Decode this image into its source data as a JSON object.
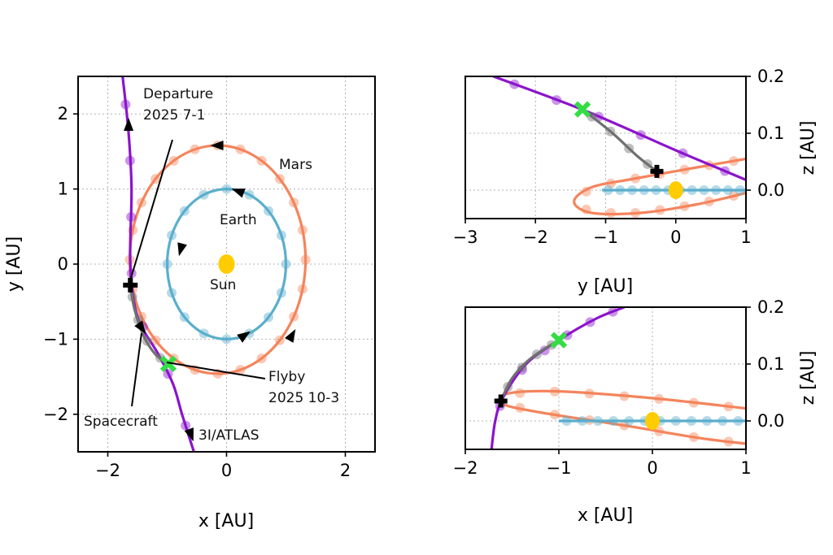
{
  "colors": {
    "earth": "#5aaecb",
    "mars": "#f4845c",
    "atlas": "#8b14cc",
    "spacecraft": "#707070",
    "sun": "#ffcc00",
    "flyby_marker": "#33dd44",
    "departure_marker": "#000000",
    "arrow_icon": "arrow-head-icon"
  },
  "chart_data": [
    {
      "type": "line",
      "panel": "xy",
      "xlabel": "x [AU]",
      "ylabel": "y [AU]",
      "xlim": [
        -2.5,
        2.5
      ],
      "ylim": [
        -2.5,
        2.5
      ],
      "xticks": [
        -2,
        0,
        2
      ],
      "xtick_labels": [
        "−2",
        "0",
        "2"
      ],
      "yticks": [
        -2,
        -1,
        0,
        1,
        2
      ],
      "ytick_labels": [
        "−2",
        "−1",
        "0",
        "1",
        "2"
      ],
      "grid": true,
      "series": [
        {
          "name": "Earth",
          "kind": "ellipse",
          "center": [
            0,
            0
          ],
          "radii": [
            1.0,
            1.0
          ]
        },
        {
          "name": "Mars",
          "kind": "ellipse",
          "center": [
            -0.15,
            0.06
          ],
          "radii": [
            1.48,
            1.52
          ]
        },
        {
          "name": "Sun",
          "kind": "point",
          "x": 0,
          "y": 0
        },
        {
          "name": "3I/ATLAS",
          "kind": "line",
          "points": [
            [
              -1.75,
              2.5
            ],
            [
              -1.65,
              1.75
            ],
            [
              -1.6,
              1.0
            ],
            [
              -1.62,
              0.0
            ],
            [
              -1.5,
              -0.7
            ],
            [
              -1.15,
              -1.2
            ],
            [
              -0.9,
              -1.6
            ],
            [
              -0.75,
              -2.0
            ],
            [
              -0.55,
              -2.5
            ]
          ]
        },
        {
          "name": "Spacecraft",
          "kind": "line",
          "points": [
            [
              -1.62,
              -0.28
            ],
            [
              -1.55,
              -0.6
            ],
            [
              -1.4,
              -0.95
            ],
            [
              -1.2,
              -1.2
            ],
            [
              -0.98,
              -1.33
            ]
          ]
        }
      ],
      "markers": {
        "departure": {
          "x": -1.62,
          "y": -0.28
        },
        "flyby": {
          "x": -0.98,
          "y": -1.33
        }
      },
      "annotations": [
        {
          "text": [
            "Departure",
            "2025 7-1"
          ]
        },
        {
          "text": [
            "Mars"
          ]
        },
        {
          "text": [
            "Earth"
          ]
        },
        {
          "text": [
            "Sun"
          ]
        },
        {
          "text": [
            "Flyby",
            "2025 10-3"
          ]
        },
        {
          "text": [
            "Spacecraft"
          ]
        },
        {
          "text": [
            "3I/ATLAS"
          ]
        }
      ]
    },
    {
      "type": "line",
      "panel": "yz",
      "xlabel": "y [AU]",
      "ylabel": "z [AU]",
      "xlim": [
        -3,
        1
      ],
      "ylim": [
        -0.05,
        0.2
      ],
      "xticks": [
        -3,
        -2,
        -1,
        0,
        1
      ],
      "xtick_labels": [
        "−3",
        "−2",
        "−1",
        "0",
        "1"
      ],
      "yticks": [
        0.0,
        0.1,
        0.2
      ],
      "ytick_labels": [
        "0.0",
        "0.1",
        "0.2"
      ],
      "grid": true,
      "series": [
        {
          "name": "Earth",
          "kind": "line",
          "points": [
            [
              -1.05,
              0
            ],
            [
              1.0,
              0
            ]
          ]
        },
        {
          "name": "Mars",
          "kind": "line",
          "points": [
            [
              1.0,
              0.055
            ],
            [
              0.3,
              0.04
            ],
            [
              -0.6,
              0.02
            ],
            [
              -1.2,
              0.005
            ],
            [
              -1.45,
              -0.02
            ],
            [
              -1.2,
              -0.04
            ],
            [
              -0.5,
              -0.04
            ],
            [
              0.3,
              -0.025
            ],
            [
              1.0,
              -0.005
            ]
          ]
        },
        {
          "name": "3I/ATLAS",
          "kind": "line",
          "points": [
            [
              -2.6,
              0.2
            ],
            [
              -1.3,
              0.14
            ],
            [
              0.0,
              0.07
            ],
            [
              1.0,
              0.018
            ]
          ]
        },
        {
          "name": "Spacecraft",
          "kind": "line",
          "points": [
            [
              -1.33,
              0.142
            ],
            [
              -0.9,
              0.1
            ],
            [
              -0.55,
              0.06
            ],
            [
              -0.27,
              0.033
            ]
          ]
        },
        {
          "name": "Sun",
          "kind": "point",
          "x": 0,
          "y": 0
        }
      ],
      "markers": {
        "departure": {
          "x": -0.27,
          "y": 0.033
        },
        "flyby": {
          "x": -1.33,
          "y": 0.142
        }
      }
    },
    {
      "type": "line",
      "panel": "xz",
      "xlabel": "x [AU]",
      "ylabel": "z [AU]",
      "xlim": [
        -2,
        1
      ],
      "ylim": [
        -0.05,
        0.2
      ],
      "xticks": [
        -2,
        -1,
        0,
        1
      ],
      "xtick_labels": [
        "−2",
        "−1",
        "0",
        "1"
      ],
      "yticks": [
        0.0,
        0.1,
        0.2
      ],
      "ytick_labels": [
        "0.0",
        "0.1",
        "0.2"
      ],
      "grid": true,
      "series": [
        {
          "name": "Earth",
          "kind": "line",
          "points": [
            [
              -1.0,
              0
            ],
            [
              1.0,
              0
            ]
          ]
        },
        {
          "name": "Mars",
          "kind": "line",
          "points": [
            [
              1.0,
              0.022
            ],
            [
              0.0,
              0.04
            ],
            [
              -1.0,
              0.052
            ],
            [
              -1.55,
              0.048
            ],
            [
              -1.6,
              0.03
            ],
            [
              -1.2,
              0.015
            ],
            [
              -0.3,
              -0.008
            ],
            [
              0.5,
              -0.03
            ],
            [
              1.0,
              -0.04
            ]
          ]
        },
        {
          "name": "3I/ATLAS",
          "kind": "line",
          "points": [
            [
              -1.72,
              -0.05
            ],
            [
              -1.68,
              0.0
            ],
            [
              -1.6,
              0.04
            ],
            [
              -1.35,
              0.1
            ],
            [
              -1.0,
              0.142
            ],
            [
              -0.6,
              0.18
            ],
            [
              -0.3,
              0.2
            ]
          ]
        },
        {
          "name": "Spacecraft",
          "kind": "line",
          "points": [
            [
              -1.0,
              0.142
            ],
            [
              -1.3,
              0.11
            ],
            [
              -1.5,
              0.075
            ],
            [
              -1.62,
              0.035
            ]
          ]
        },
        {
          "name": "Sun",
          "kind": "point",
          "x": 0,
          "y": 0
        }
      ],
      "markers": {
        "departure": {
          "x": -1.62,
          "y": 0.035
        },
        "flyby": {
          "x": -1.0,
          "y": 0.142
        }
      }
    }
  ]
}
